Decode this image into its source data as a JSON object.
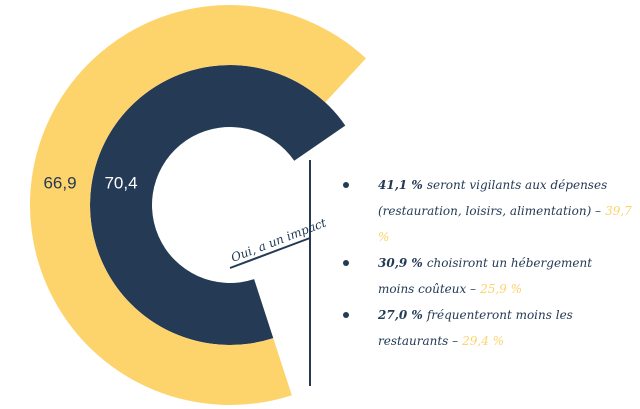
{
  "chart_data": {
    "type": "radial_bar",
    "values": [
      66.9,
      70.4
    ],
    "value_labels": [
      "66,9",
      "70,4"
    ],
    "colors": [
      "#fdd36b",
      "#243a55"
    ],
    "ylim": [
      0,
      100
    ],
    "annotation": "Oui, a un impact",
    "notes": [
      {
        "bold": "41,1 %",
        "text": "seront vigilants aux dépenses (restauration, loisirs, alimentation) –",
        "highlight": "39,7 %"
      },
      {
        "bold": "30,9 %",
        "text": "choisiront un hébergement moins coûteux –",
        "highlight": "25,9 %"
      },
      {
        "bold": "27,0 %",
        "text": "fréquenteront moins les restaurants –",
        "highlight": "29,4 %"
      }
    ]
  }
}
